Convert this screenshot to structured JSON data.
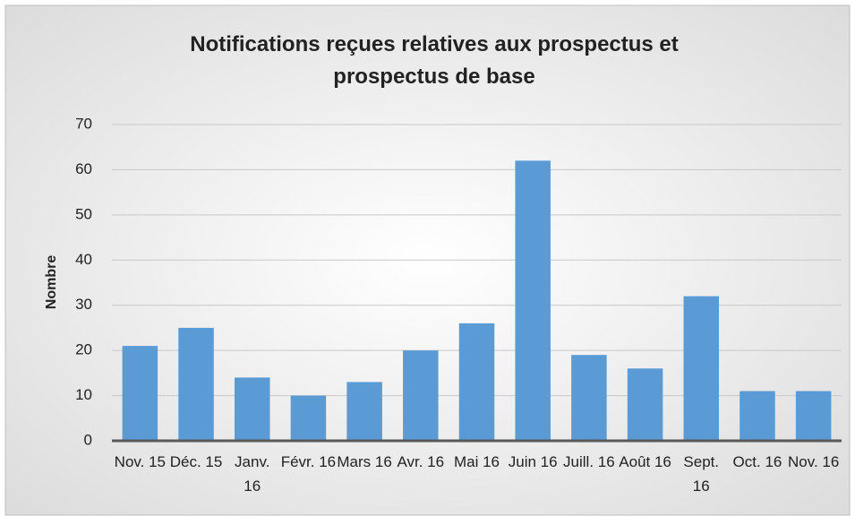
{
  "chart_data": {
    "type": "bar",
    "title": "Notifications reçues relatives aux prospectus et prospectus de base",
    "y_label": "Nombre",
    "categories": [
      "Nov. 15",
      "Déc. 15",
      "Janv. 16",
      "Févr. 16",
      "Mars 16",
      "Avr. 16",
      "Mai 16",
      "Juin 16",
      "Juill. 16",
      "Août 16",
      "Sept. 16",
      "Oct. 16",
      "Nov. 16"
    ],
    "values": [
      21,
      25,
      14,
      10,
      13,
      20,
      26,
      62,
      19,
      16,
      32,
      11,
      11
    ],
    "color": "#5b9bd5",
    "ylim": [
      0,
      70
    ],
    "yticks": [
      0,
      10,
      20,
      30,
      40,
      50,
      60,
      70
    ],
    "grid": true
  }
}
